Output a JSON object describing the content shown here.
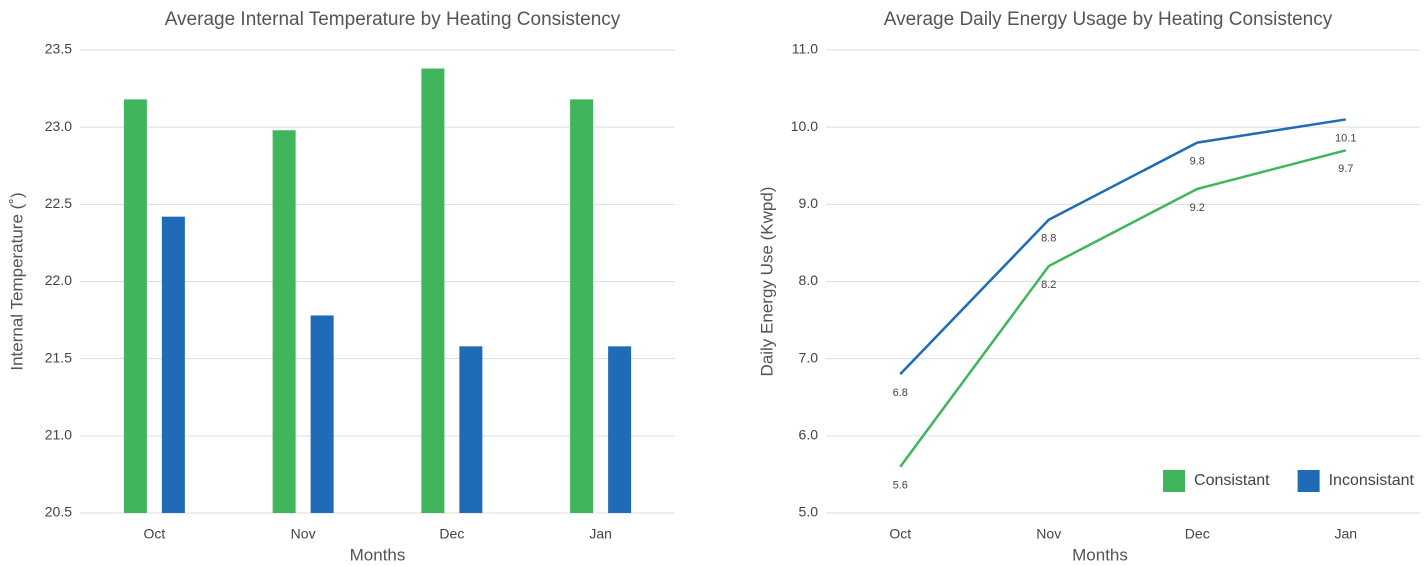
{
  "chart_data": [
    {
      "type": "bar",
      "title": "Average Internal Temperature by Heating Consistency",
      "categories": [
        "Oct",
        "Nov",
        "Dec",
        "Jan"
      ],
      "series": [
        {
          "color": "#3fb65b",
          "values": [
            23.18,
            22.98,
            23.38,
            23.18
          ]
        },
        {
          "color": "#1f6bb5",
          "values": [
            22.42,
            21.78,
            21.58,
            21.58
          ]
        }
      ],
      "xlabel": "Months",
      "ylabel": "Internal Temperature (˚)",
      "ylim": [
        20.5,
        23.5
      ],
      "yticks": [
        20.5,
        {
          "value": 21,
          "label": "21.0"
        },
        21.5,
        {
          "value": 22,
          "label": "22.0"
        },
        22.5,
        {
          "value": 23,
          "label": "23.0"
        },
        23.5
      ],
      "grid": true
    },
    {
      "type": "line",
      "title": "Average Daily Energy Usage by Heating Consistency",
      "categories": [
        "Oct",
        "Nov",
        "Dec",
        "Jan"
      ],
      "series": [
        {
          "name": "Consistant",
          "color": "#3fb65b",
          "values": [
            5.6,
            8.2,
            9.2,
            9.7
          ]
        },
        {
          "name": "Inconsistant",
          "color": "#1f6bb5",
          "values": [
            6.8,
            8.8,
            9.8,
            10.1
          ]
        }
      ],
      "xlabel": "Months",
      "ylabel": "Daily Energy Use (Kwpd)",
      "ylim": [
        5,
        11
      ],
      "yticks": [
        {
          "value": 5,
          "label": "5.0"
        },
        {
          "value": 6,
          "label": "6.0"
        },
        {
          "value": 7,
          "label": "7.0"
        },
        {
          "value": 8,
          "label": "8.0"
        },
        {
          "value": 9,
          "label": "9.0"
        },
        {
          "value": 10,
          "label": "10.0"
        },
        {
          "value": 11,
          "label": "11.0"
        }
      ],
      "grid": true,
      "legend": "lower right",
      "data_labels": true
    }
  ]
}
